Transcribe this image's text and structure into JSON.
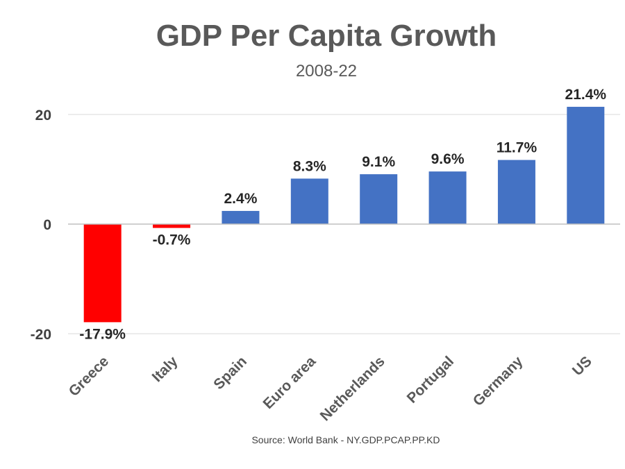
{
  "chart_data": {
    "type": "bar",
    "title": "GDP Per Capita Growth",
    "subtitle": "2008-22",
    "categories": [
      "Greece",
      "Italy",
      "Spain",
      "Euro area",
      "Netherlands",
      "Portugal",
      "Germany",
      "US"
    ],
    "values": [
      -17.9,
      -0.7,
      2.4,
      8.3,
      9.1,
      9.6,
      11.7,
      21.4
    ],
    "data_labels": [
      "-17.9%",
      "-0.7%",
      "2.4%",
      "8.3%",
      "9.1%",
      "9.6%",
      "11.7%",
      "21.4%"
    ],
    "yticks": [
      20,
      0,
      -20
    ],
    "ytick_labels": [
      "20",
      "0",
      "-20"
    ],
    "ylim": [
      -20,
      20
    ],
    "grid": true,
    "legend": "none",
    "xlabel": "",
    "ylabel": "",
    "colors": {
      "positive": "#4472c4",
      "negative": "#ff0000"
    }
  },
  "source": "Source: World Bank - NY.GDP.PCAP.PP.KD"
}
